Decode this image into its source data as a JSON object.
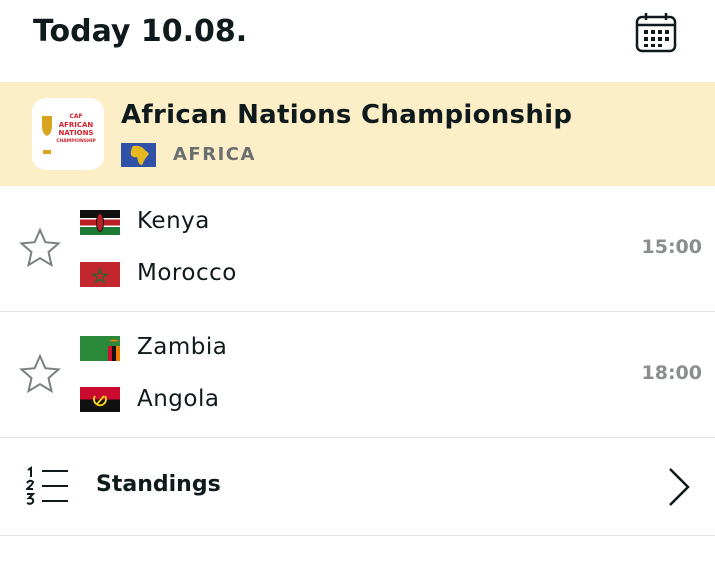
{
  "header": {
    "title": "Today 10.08."
  },
  "competition": {
    "name": "African Nations Championship",
    "region": "AFRICA",
    "logo_text": [
      "CAF",
      "AFRICAN",
      "NATIONS",
      "CHAMPIONSHIP"
    ]
  },
  "matches": [
    {
      "home": "Kenya",
      "away": "Morocco",
      "time": "15:00"
    },
    {
      "home": "Zambia",
      "away": "Angola",
      "time": "18:00"
    }
  ],
  "standings": {
    "label": "Standings"
  }
}
